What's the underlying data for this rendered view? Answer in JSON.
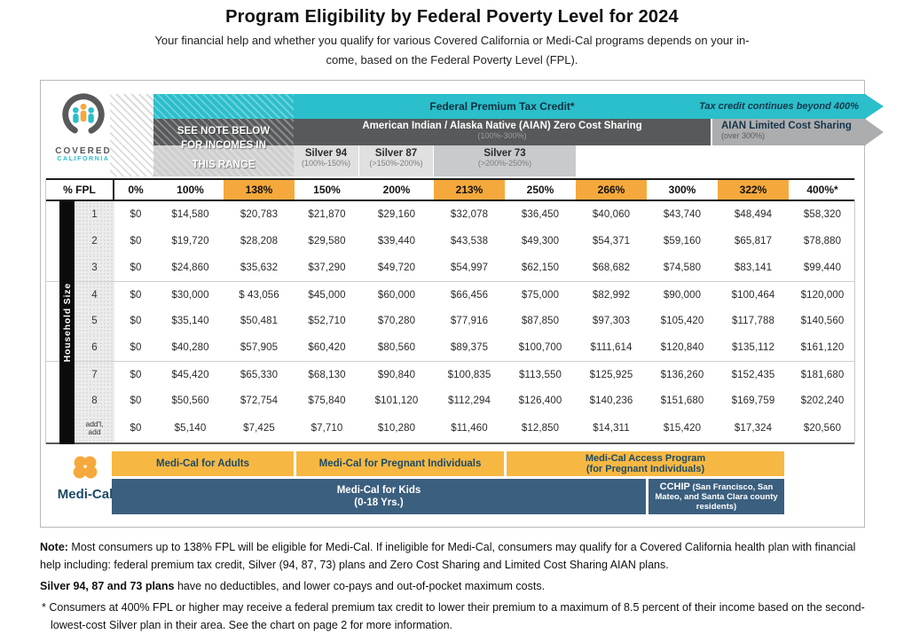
{
  "page": {
    "title": "Program Eligibility by Federal Poverty Level for 2024",
    "subtitle_line1": "Your financial help and whether you qualify for various Covered California or Medi-Cal programs depends on your in-",
    "subtitle_line2": "come, based on the Federal Poverty Level (FPL)."
  },
  "logos": {
    "covered_line1": "COVERED",
    "covered_line2": "CALIFORNIA",
    "medical": "Medi-Cal"
  },
  "banner": {
    "see_note_line1": "SEE NOTE BELOW",
    "see_note_line2": "FOR INCOMES IN",
    "see_note_line3": "THIS RANGE",
    "federal_premium_title": "Federal Premium Tax Credit*",
    "tax_credit_note": "Tax credit continues beyond 400%",
    "aian_zero_title": "American Indian / Alaska Native (AIAN) Zero Cost Sharing",
    "aian_zero_range": "(100%-300%)",
    "aian_limited_title": "AIAN Limited Cost Sharing",
    "aian_limited_range": "(over 300%)",
    "silver_94_name": "Silver 94",
    "silver_94_range": "(100%-150%)",
    "silver_87_name": "Silver 87",
    "silver_87_range": "(>150%-200%)",
    "silver_73_name": "Silver 73",
    "silver_73_range": "(>200%-250%)"
  },
  "table": {
    "row_axis_label": "Household Size",
    "header": [
      "% FPL",
      "0%",
      "100%",
      "138%",
      "150%",
      "200%",
      "213%",
      "250%",
      "266%",
      "300%",
      "322%",
      "400%*"
    ],
    "highlight_header_indices": [
      3,
      6,
      8,
      10
    ],
    "rows": [
      {
        "label": "1",
        "values": [
          "$0",
          "$14,580",
          "$20,783",
          "$21,870",
          "$29,160",
          "$32,078",
          "$36,450",
          "$40,060",
          "$43,740",
          "$48,494",
          "$58,320"
        ]
      },
      {
        "label": "2",
        "values": [
          "$0",
          "$19,720",
          "$28,208",
          "$29,580",
          "$39,440",
          "$43,538",
          "$49,300",
          "$54,371",
          "$59,160",
          "$65,817",
          "$78,880"
        ]
      },
      {
        "label": "3",
        "values": [
          "$0",
          "$24,860",
          "$35,632",
          "$37,290",
          "$49,720",
          "$54,997",
          "$62,150",
          "$68,682",
          "$74,580",
          "$83,141",
          "$99,440"
        ]
      },
      {
        "label": "4",
        "values": [
          "$0",
          "$30,000",
          "$ 43,056",
          "$45,000",
          "$60,000",
          "$66,456",
          "$75,000",
          "$82,992",
          "$90,000",
          "$100,464",
          "$120,000"
        ]
      },
      {
        "label": "5",
        "values": [
          "$0",
          "$35,140",
          "$50,481",
          "$52,710",
          "$70,280",
          "$77,916",
          "$87,850",
          "$97,303",
          "$105,420",
          "$117,788",
          "$140,560"
        ]
      },
      {
        "label": "6",
        "values": [
          "$0",
          "$40,280",
          "$57,905",
          "$60,420",
          "$80,560",
          "$89,375",
          "$100,700",
          "$111,614",
          "$120,840",
          "$135,112",
          "$161,120"
        ]
      },
      {
        "label": "7",
        "values": [
          "$0",
          "$45,420",
          "$65,330",
          "$68,130",
          "$90,840",
          "$100,835",
          "$113,550",
          "$125,925",
          "$136,260",
          "$152,435",
          "$181,680"
        ]
      },
      {
        "label": "8",
        "values": [
          "$0",
          "$50,560",
          "$72,754",
          "$75,840",
          "$101,120",
          "$112,294",
          "$126,400",
          "$140,236",
          "$151,680",
          "$169,759",
          "$202,240"
        ]
      },
      {
        "label": "add'l,\nadd",
        "values": [
          "$0",
          "$5,140",
          "$7,425",
          "$7,710",
          "$10,280",
          "$11,460",
          "$12,850",
          "$14,311",
          "$15,420",
          "$17,324",
          "$20,560"
        ]
      }
    ]
  },
  "medical": {
    "adults": "Medi-Cal for Adults",
    "pregnant": "Medi-Cal for Pregnant Individuals",
    "access_line1": "Medi-Cal Access Program",
    "access_line2": "(for Pregnant Individuals)",
    "kids_line1": "Medi-Cal for Kids",
    "kids_line2": "(0-18 Yrs.)",
    "cchip_bold": "CCHIP",
    "cchip_rest": " (San Francisco, San Mateo, and Santa Clara county residents)"
  },
  "notes": {
    "note_bold": "Note:",
    "note_text": " Most consumers up to 138% FPL will be eligible for Medi-Cal. If ineligible for Medi-Cal, consumers may qualify for a Covered California health plan with financial help including: federal premium tax credit, Silver (94, 87, 73) plans and Zero Cost Sharing and Limited Cost Sharing AIAN plans.",
    "silver_bold": "Silver 94, 87 and 73 plans",
    "silver_text": " have no deductibles, and lower co-pays and out-of-pocket maximum costs.",
    "asterisk_text": "* Consumers at 400% FPL or higher may receive a federal premium tax credit to lower their premium to a maximum of 8.5 percent of their income based on the second-lowest-cost Silver plan in their area. See the chart on page 2 for more information."
  },
  "colors": {
    "teal": "#2BBECB",
    "orange_highlight": "#F5A93C",
    "orange_medical": "#F7B843",
    "dark_gray_band": "#58595B",
    "aian_limited_gray": "#ACADAF",
    "silver_light": "#E0E0E0",
    "silver_73": "#C9CACC",
    "navy": "#1D4A66",
    "medical_blue": "#3B5F7E",
    "black_bar": "#0B0B0B"
  }
}
